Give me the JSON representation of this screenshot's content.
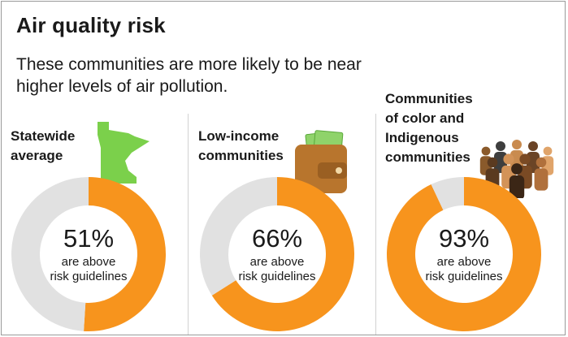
{
  "header": {
    "title": "Air quality risk",
    "subtitle": "These communities are more likely to be near higher levels of air pollution."
  },
  "colors": {
    "above": "#f7941d",
    "below": "#e1e1e1",
    "minnesota": "#7bd04b",
    "wallet": "#b8752d",
    "money": "#8fd36a"
  },
  "icons": {
    "panel1": "minnesota-state-icon",
    "panel2": "wallet-with-money-icon",
    "panel3": "people-group-icon"
  },
  "chart_data": [
    {
      "type": "pie",
      "label_lines": [
        "Statewide",
        "average"
      ],
      "categories": [
        "above risk guidelines",
        "below risk guidelines"
      ],
      "values": [
        51,
        49
      ],
      "center_value": "51%",
      "center_caption": [
        "are above",
        "risk guidelines"
      ]
    },
    {
      "type": "pie",
      "label_lines": [
        "Low-income",
        "communities"
      ],
      "categories": [
        "above risk guidelines",
        "below risk guidelines"
      ],
      "values": [
        66,
        34
      ],
      "center_value": "66%",
      "center_caption": [
        "are above",
        "risk guidelines"
      ]
    },
    {
      "type": "pie",
      "label_lines": [
        "Communities",
        "of color and",
        "Indigenous",
        "communities"
      ],
      "categories": [
        "above risk guidelines",
        "below risk guidelines"
      ],
      "values": [
        93,
        7
      ],
      "center_value": "93%",
      "center_caption": [
        "are above",
        "risk guidelines"
      ]
    }
  ]
}
